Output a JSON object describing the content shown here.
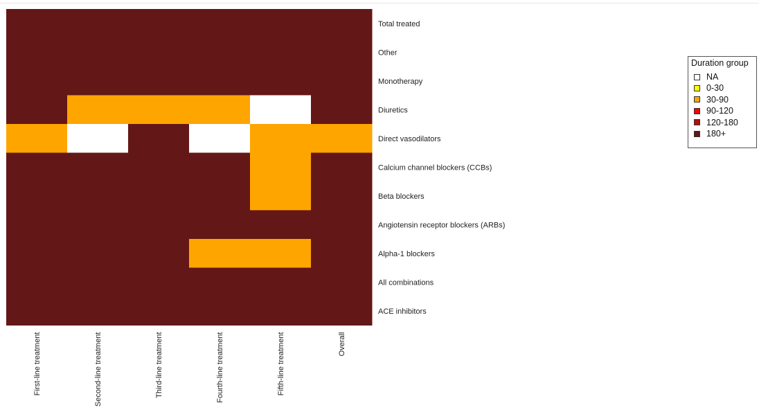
{
  "chart_data": {
    "type": "heatmap",
    "columns": [
      "First-line treatment",
      "Second-line treatment",
      "Third-line treatment",
      "Fourth-line treatment",
      "Fifth-line treatment",
      "Overall"
    ],
    "rows": [
      "Total treated",
      "Other",
      "Monotherapy",
      "Diuretics",
      "Direct vasodilators",
      "Calcium channel blockers (CCBs)",
      "Beta blockers",
      "Angiotensin receptor blockers (ARBs)",
      "Alpha-1 blockers",
      "All combinations",
      "ACE inhibitors"
    ],
    "values": [
      [
        "180+",
        "180+",
        "180+",
        "180+",
        "180+",
        "180+"
      ],
      [
        "180+",
        "180+",
        "180+",
        "180+",
        "180+",
        "180+"
      ],
      [
        "180+",
        "180+",
        "180+",
        "180+",
        "180+",
        "180+"
      ],
      [
        "180+",
        "30-90",
        "30-90",
        "30-90",
        "NA",
        "180+"
      ],
      [
        "30-90",
        "NA",
        "180+",
        "NA",
        "30-90",
        "30-90"
      ],
      [
        "180+",
        "180+",
        "180+",
        "180+",
        "30-90",
        "180+"
      ],
      [
        "180+",
        "180+",
        "180+",
        "180+",
        "30-90",
        "180+"
      ],
      [
        "180+",
        "180+",
        "180+",
        "180+",
        "180+",
        "180+"
      ],
      [
        "180+",
        "180+",
        "180+",
        "30-90",
        "30-90",
        "180+"
      ],
      [
        "180+",
        "180+",
        "180+",
        "180+",
        "180+",
        "180+"
      ],
      [
        "180+",
        "180+",
        "180+",
        "180+",
        "180+",
        "180+"
      ]
    ],
    "legend": {
      "title": "Duration group",
      "position": "right",
      "items": [
        {
          "label": "NA",
          "color": "#ffffff"
        },
        {
          "label": "0-30",
          "color": "#ffff00"
        },
        {
          "label": "30-90",
          "color": "#ffa500"
        },
        {
          "label": "90-120",
          "color": "#ff0000"
        },
        {
          "label": "120-180",
          "color": "#b01010"
        },
        {
          "label": "180+",
          "color": "#641717"
        }
      ]
    }
  }
}
